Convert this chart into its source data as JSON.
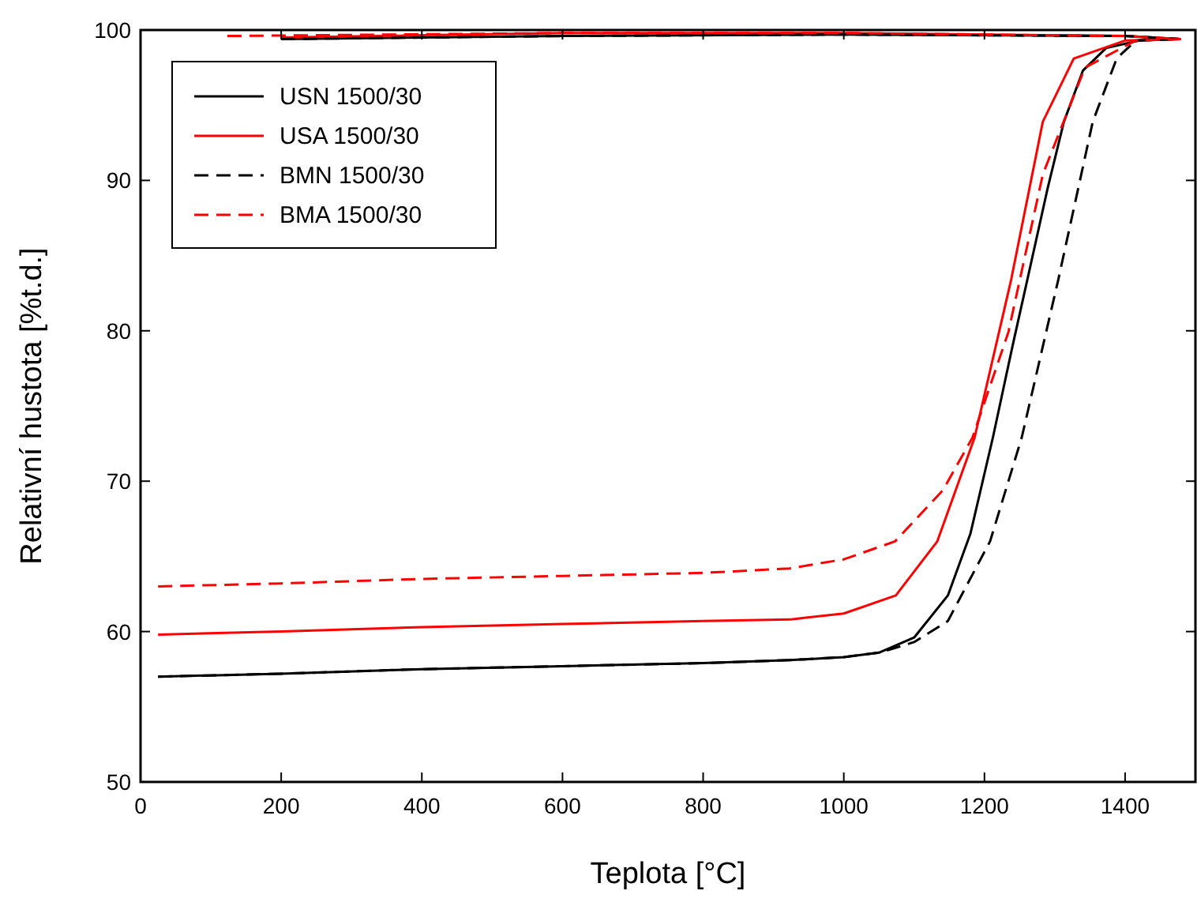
{
  "chart_data": {
    "type": "line",
    "xlabel": "Teplota [°C]",
    "ylabel": "Relativní hustota [%t.d.]",
    "xlim": [
      0,
      1500
    ],
    "ylim": [
      50,
      100
    ],
    "xticks": [
      0,
      200,
      400,
      600,
      800,
      1000,
      1200,
      1400
    ],
    "yticks": [
      50,
      60,
      70,
      80,
      90,
      100
    ],
    "grid": false,
    "legend": "top left",
    "series": [
      {
        "name": "USN 1500/30",
        "color": "#000000",
        "line_style": "solid",
        "x": [
          25,
          200,
          400,
          600,
          800,
          923,
          1000,
          1050,
          1100,
          1148,
          1180,
          1212,
          1240,
          1261,
          1290,
          1313,
          1340,
          1373,
          1420,
          1478,
          1400,
          1000,
          600,
          200
        ],
        "values": [
          57.0,
          57.2,
          57.5,
          57.7,
          57.9,
          58.1,
          58.3,
          58.6,
          59.6,
          62.4,
          66.5,
          72.9,
          79,
          83.4,
          89.5,
          93.9,
          97.3,
          98.8,
          99.3,
          99.4,
          99.6,
          99.7,
          99.6,
          99.4
        ]
      },
      {
        "name": "USA 1500/30",
        "color": "#ff0000",
        "line_style": "solid",
        "x": [
          25,
          200,
          400,
          600,
          800,
          923,
          1000,
          1074,
          1133,
          1186,
          1238,
          1283,
          1327,
          1400,
          1478,
          1400,
          1000,
          600,
          200
        ],
        "values": [
          59.8,
          60.0,
          60.3,
          60.5,
          60.7,
          60.8,
          61.2,
          62.4,
          66.0,
          72.9,
          83.4,
          93.9,
          98.1,
          99.3,
          99.4,
          99.6,
          99.8,
          99.8,
          99.5
        ]
      },
      {
        "name": "BMN 1500/30",
        "color": "#000000",
        "line_style": "dashed",
        "x": [
          25,
          200,
          400,
          600,
          800,
          923,
          1000,
          1051,
          1100,
          1148,
          1208,
          1253,
          1305,
          1354,
          1388,
          1415,
          1478,
          1400,
          1000,
          600,
          200
        ],
        "values": [
          57.0,
          57.2,
          57.5,
          57.7,
          57.9,
          58.1,
          58.3,
          58.6,
          59.3,
          60.7,
          66.0,
          72.9,
          83.4,
          93.9,
          98.1,
          99.3,
          99.4,
          99.6,
          99.7,
          99.6,
          99.4
        ]
      },
      {
        "name": "BMA 1500/30",
        "color": "#ff0000",
        "line_style": "dashed",
        "x": [
          25,
          200,
          400,
          600,
          800,
          923,
          1000,
          1073,
          1141,
          1183,
          1234,
          1283,
          1343,
          1415,
          1478,
          1400,
          1000,
          600,
          120
        ],
        "values": [
          63.0,
          63.2,
          63.5,
          63.7,
          63.9,
          64.2,
          64.8,
          66.0,
          69.4,
          72.9,
          79.9,
          90.4,
          97.5,
          99.3,
          99.4,
          99.6,
          99.8,
          99.8,
          99.6
        ]
      }
    ]
  }
}
